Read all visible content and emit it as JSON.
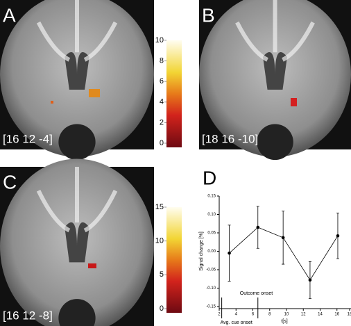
{
  "panels": [
    {
      "letter": "A",
      "coords": "[16 12 -4]",
      "colorbar": {
        "lim": [
          0,
          10
        ],
        "ticks": [
          0,
          2,
          4,
          6,
          8,
          10
        ]
      }
    },
    {
      "letter": "B",
      "coords": "[18 16 -10]"
    },
    {
      "letter": "C",
      "coords": "[16 12 -8]",
      "colorbar": {
        "lim": [
          0,
          15
        ],
        "ticks": [
          0,
          5,
          10,
          15
        ]
      }
    }
  ],
  "chart_data": {
    "type": "line",
    "letter": "D",
    "ylabel": "Signal change [%]",
    "xlabel": "t[s]",
    "annotations": [
      {
        "text": "Outcome onset",
        "x": 6.6
      },
      {
        "text": "Avg. cue onset",
        "x": 2.3
      }
    ],
    "x": [
      3.2,
      6.6,
      9.6,
      12.8,
      16.1
    ],
    "series": [
      {
        "name": "signal",
        "color": "#000000",
        "values": [
          -0.005,
          0.065,
          0.037,
          -0.078,
          0.042
        ],
        "errors": [
          0.076,
          0.057,
          0.072,
          0.05,
          0.062
        ]
      }
    ],
    "xlim": [
      2,
      18
    ],
    "xticks": [
      2,
      4,
      6,
      8,
      10,
      12,
      14,
      16,
      18
    ],
    "ylim": [
      -0.15,
      0.15
    ],
    "yticks": [
      {
        "value": -0.15,
        "label": "-0.15"
      },
      {
        "value": -0.1,
        "label": "-0.10"
      },
      {
        "value": -0.05,
        "label": "-0.05"
      },
      {
        "value": 0,
        "label": "0.00"
      },
      {
        "value": 0.05,
        "label": "0.05"
      },
      {
        "value": 0.1,
        "label": "0.10"
      },
      {
        "value": 0.15,
        "label": "0.15"
      }
    ]
  }
}
